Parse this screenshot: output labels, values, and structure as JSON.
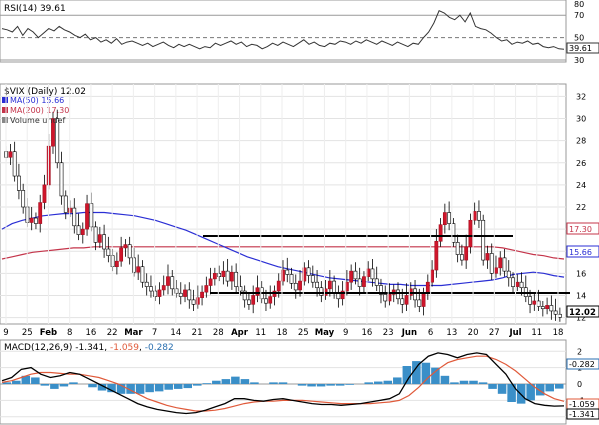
{
  "chart_data": [
    {
      "type": "line",
      "title": "RSI(14) 39.61",
      "indicator": "RSI(14)",
      "last_value": 39.61,
      "ylim": [
        30,
        80
      ],
      "yticks": [
        "80",
        "70",
        "50",
        "30"
      ],
      "reference_lines": [
        70,
        50,
        30
      ],
      "series": [
        {
          "name": "RSI(14)",
          "values": [
            58,
            57,
            55,
            60,
            52,
            58,
            55,
            50,
            54,
            58,
            56,
            60,
            57,
            55,
            52,
            50,
            53,
            48,
            50,
            46,
            48,
            45,
            49,
            44,
            46,
            47,
            45,
            43,
            45,
            42,
            44,
            46,
            43,
            41,
            44,
            42,
            44,
            42,
            40,
            42,
            41,
            45,
            43,
            45,
            47,
            44,
            46,
            42,
            44,
            43,
            40,
            42,
            45,
            43,
            46,
            44,
            42,
            45,
            48,
            44,
            46,
            43,
            42,
            45,
            44,
            47,
            46,
            44,
            47,
            45,
            48,
            46,
            44,
            47,
            45,
            43,
            46,
            44,
            42,
            45,
            44,
            50,
            55,
            63,
            74,
            72,
            68,
            66,
            70,
            64,
            72,
            60,
            58,
            57,
            54,
            50,
            47,
            48,
            44,
            46,
            45,
            47,
            44,
            45,
            42,
            41,
            42,
            40,
            39.61
          ]
        }
      ]
    },
    {
      "type": "candlestick",
      "title": "$VIX (Daily) 12.02",
      "symbol": "$VIX",
      "interval": "Daily",
      "last_value": 12.02,
      "ylim": [
        12,
        32
      ],
      "yticks": [
        "32",
        "30",
        "28",
        "26",
        "24",
        "22",
        "20",
        "18",
        "16",
        "14",
        "12"
      ],
      "y_price_labels": {
        "ma200": "17.30",
        "ma50": "15.66",
        "last": "12.02"
      },
      "x_tick_labels": [
        "9",
        "25",
        "Feb",
        "8",
        "16",
        "22",
        "Mar",
        "7",
        "14",
        "21",
        "28",
        "Apr",
        "11",
        "18",
        "25",
        "May",
        "9",
        "16",
        "23",
        "Jun",
        "6",
        "13",
        "20",
        "27",
        "Jul",
        "11",
        "18"
      ],
      "legend": [
        "MA(50) 15.66",
        "MA(200) 17.30",
        "Volume undef"
      ],
      "series": [
        {
          "name": "MA(50)",
          "last": 15.66,
          "color": "#2a2ed4",
          "values": [
            20.0,
            20.5,
            20.8,
            21.0,
            21.2,
            21.3,
            21.4,
            21.4,
            21.5,
            21.5,
            21.5,
            21.4,
            21.3,
            21.2,
            21.0,
            20.8,
            20.5,
            20.2,
            19.9,
            19.5,
            19.1,
            18.7,
            18.3,
            17.9,
            17.5,
            17.2,
            16.9,
            16.6,
            16.4,
            16.2,
            16.0,
            15.8,
            15.6,
            15.5,
            15.4,
            15.3,
            15.2,
            15.1,
            15.0,
            15.0,
            14.9,
            14.9,
            14.9,
            14.9,
            15.0,
            15.1,
            15.2,
            15.3,
            15.4,
            15.6,
            15.9,
            16.0,
            16.1,
            16.0,
            15.8,
            15.66
          ]
        },
        {
          "name": "MA(200)",
          "last": 17.3,
          "color": "#c4344a",
          "values": [
            17.3,
            17.5,
            17.7,
            17.9,
            18.0,
            18.1,
            18.2,
            18.3,
            18.3,
            18.4,
            18.4,
            18.4,
            18.4,
            18.4,
            18.4,
            18.4,
            18.4,
            18.4,
            18.4,
            18.4,
            18.4,
            18.4,
            18.4,
            18.4,
            18.4,
            18.4,
            18.4,
            18.4,
            18.4,
            18.4,
            18.4,
            18.4,
            18.4,
            18.4,
            18.4,
            18.4,
            18.4,
            18.4,
            18.4,
            18.4,
            18.4,
            18.4,
            18.4,
            18.4,
            18.4,
            18.4,
            18.4,
            18.4,
            18.4,
            18.3,
            18.1,
            17.9,
            17.7,
            17.6,
            17.4,
            17.3
          ]
        },
        {
          "name": "candles",
          "note": "close values, one per bar",
          "values": [
            26.5,
            27.0,
            24.8,
            23.5,
            22.0,
            20.6,
            21.0,
            20.5,
            22.4,
            24.0,
            27.5,
            30.0,
            26.0,
            23.0,
            21.5,
            21.9,
            20.3,
            19.5,
            20.0,
            22.3,
            20.2,
            18.8,
            19.5,
            18.2,
            17.6,
            16.6,
            17.1,
            18.3,
            18.6,
            17.4,
            16.1,
            16.6,
            15.2,
            14.8,
            14.4,
            13.9,
            14.5,
            14.9,
            15.7,
            14.6,
            14.2,
            13.9,
            14.5,
            13.6,
            13.2,
            13.8,
            14.3,
            14.9,
            15.5,
            16.0,
            15.7,
            16.2,
            15.3,
            16.1,
            14.8,
            14.4,
            13.6,
            13.2,
            14.0,
            14.7,
            13.7,
            13.3,
            13.9,
            14.4,
            15.3,
            16.3,
            15.9,
            15.1,
            14.5,
            15.3,
            16.5,
            15.8,
            15.2,
            14.7,
            14.0,
            14.6,
            15.3,
            14.2,
            13.7,
            14.4,
            15.2,
            16.2,
            15.5,
            14.8,
            15.7,
            16.4,
            15.5,
            14.9,
            14.1,
            13.5,
            14.1,
            14.5,
            13.7,
            13.2,
            14.0,
            14.6,
            13.6,
            13.0,
            14.2,
            15.2,
            16.3,
            18.9,
            20.4,
            21.5,
            20.5,
            18.8,
            17.7,
            17.2,
            18.4,
            20.8,
            21.6,
            20.8,
            17.2,
            17.8,
            16.0,
            16.5,
            17.4,
            16.2,
            15.6,
            14.8,
            15.2,
            14.7,
            13.9,
            13.2,
            13.5,
            13.0,
            12.8,
            13.1,
            12.6,
            12.3,
            12.02
          ]
        }
      ],
      "annotations": [
        {
          "type": "horizontal_segment",
          "y": 16.9,
          "x_from": "Apr",
          "x_to": "Jul"
        },
        {
          "type": "horizontal_segment",
          "y": 13.0,
          "x_from": "28",
          "x_to": "18"
        }
      ]
    },
    {
      "type": "line",
      "title": "MACD(12,26,9) -1.341, -1.059, -0.282",
      "indicator": "MACD(12,26,9)",
      "values_shown": [
        "-1.341",
        "-1.059",
        "-0.282"
      ],
      "ylim": [
        -2,
        2
      ],
      "yticks": [
        "2",
        "1",
        "0",
        "-1",
        "-2"
      ],
      "right_labels": [
        "-0.282",
        "-1.059",
        "-1.341"
      ],
      "series": [
        {
          "name": "MACD",
          "values": [
            0.2,
            0.4,
            0.9,
            1.0,
            0.6,
            0.4,
            0.5,
            0.7,
            0.6,
            0.3,
            0.0,
            -0.3,
            -0.6,
            -0.9,
            -1.2,
            -1.4,
            -1.55,
            -1.65,
            -1.75,
            -1.8,
            -1.75,
            -1.6,
            -1.4,
            -1.2,
            -0.9,
            -0.9,
            -1.0,
            -1.05,
            -0.95,
            -0.9,
            -1.0,
            -1.1,
            -1.2,
            -1.25,
            -1.25,
            -1.3,
            -1.25,
            -1.2,
            -1.1,
            -1.0,
            -0.9,
            -0.6,
            0.4,
            1.2,
            1.7,
            1.9,
            1.8,
            1.6,
            1.8,
            1.9,
            1.8,
            1.2,
            0.6,
            -0.3,
            -0.9,
            -1.2,
            -1.3,
            -1.35,
            -1.341
          ]
        },
        {
          "name": "Signal",
          "values": [
            0.1,
            0.2,
            0.4,
            0.6,
            0.7,
            0.7,
            0.65,
            0.6,
            0.6,
            0.5,
            0.4,
            0.2,
            0.0,
            -0.3,
            -0.6,
            -0.9,
            -1.1,
            -1.3,
            -1.45,
            -1.55,
            -1.65,
            -1.65,
            -1.6,
            -1.5,
            -1.35,
            -1.2,
            -1.1,
            -1.05,
            -1.05,
            -1.0,
            -1.0,
            -1.0,
            -1.05,
            -1.1,
            -1.15,
            -1.2,
            -1.2,
            -1.2,
            -1.2,
            -1.15,
            -1.1,
            -1.0,
            -0.7,
            -0.2,
            0.4,
            0.9,
            1.3,
            1.5,
            1.6,
            1.7,
            1.7,
            1.5,
            1.2,
            0.8,
            0.3,
            -0.2,
            -0.6,
            -0.9,
            -1.059
          ]
        },
        {
          "name": "Histogram",
          "values": [
            0.1,
            0.2,
            0.5,
            0.4,
            -0.1,
            -0.3,
            -0.15,
            0.1,
            0.0,
            -0.2,
            -0.4,
            -0.5,
            -0.6,
            -0.6,
            -0.6,
            -0.5,
            -0.45,
            -0.35,
            -0.3,
            -0.25,
            -0.1,
            0.05,
            0.2,
            0.3,
            0.45,
            0.3,
            0.1,
            0.0,
            0.1,
            0.1,
            0.0,
            -0.1,
            -0.15,
            -0.15,
            -0.1,
            -0.1,
            -0.05,
            0.0,
            0.1,
            0.15,
            0.2,
            0.4,
            1.1,
            1.4,
            1.3,
            1.0,
            0.5,
            0.1,
            0.2,
            0.2,
            0.1,
            -0.3,
            -0.6,
            -1.1,
            -1.2,
            -1.0,
            -0.7,
            -0.45,
            -0.282
          ]
        }
      ]
    }
  ]
}
